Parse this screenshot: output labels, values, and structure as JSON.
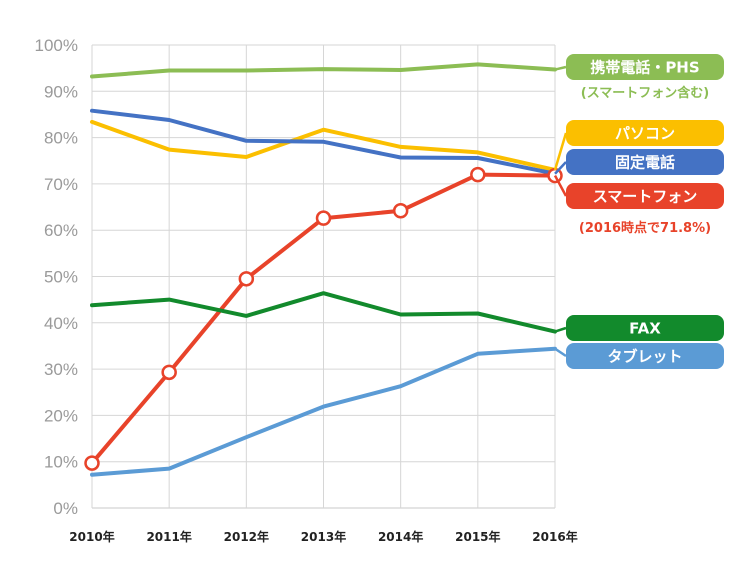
{
  "chart_data": {
    "type": "line",
    "title": "",
    "xlabel": "",
    "ylabel": "",
    "x": [
      "2010年",
      "2011年",
      "2012年",
      "2013年",
      "2014年",
      "2015年",
      "2016年"
    ],
    "y_ticks": [
      "0%",
      "10%",
      "20%",
      "30%",
      "40%",
      "50%",
      "60%",
      "70%",
      "80%",
      "90%",
      "100%"
    ],
    "ylim": [
      0,
      100
    ],
    "grid": true,
    "legend": "right",
    "series": [
      {
        "name": "携帯電話・PHS",
        "note": "(スマートフォン含む)",
        "color": "#8cbd54",
        "values": [
          93.2,
          94.5,
          94.5,
          94.8,
          94.6,
          95.8,
          94.7
        ]
      },
      {
        "name": "パソコン",
        "color": "#fbbf00",
        "values": [
          83.4,
          77.4,
          75.8,
          81.7,
          78.0,
          76.8,
          73.0
        ]
      },
      {
        "name": "固定電話",
        "color": "#4472c4",
        "values": [
          85.8,
          83.8,
          79.3,
          79.1,
          75.7,
          75.6,
          72.2
        ]
      },
      {
        "name": "スマートフォン",
        "note": "(2016時点で71.8%)",
        "color": "#e8432a",
        "markers": true,
        "values": [
          9.7,
          29.3,
          49.5,
          62.6,
          64.2,
          72.0,
          71.8
        ]
      },
      {
        "name": "FAX",
        "color": "#128a2c",
        "values": [
          43.8,
          45.0,
          41.5,
          46.4,
          41.8,
          42.0,
          38.1
        ]
      },
      {
        "name": "タブレット",
        "color": "#5b9bd5",
        "values": [
          7.2,
          8.5,
          15.3,
          21.9,
          26.3,
          33.3,
          34.4
        ]
      }
    ]
  }
}
